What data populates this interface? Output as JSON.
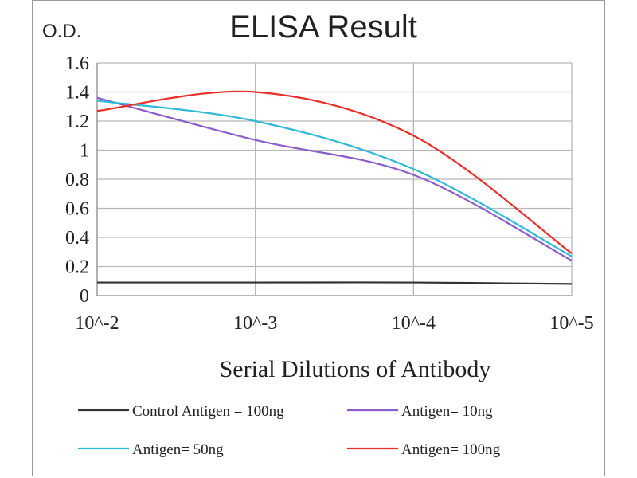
{
  "chart_data": {
    "type": "line",
    "title": "ELISA Result",
    "ylabel": "O.D.",
    "xlabel": "Serial  Dilutions  of Antibody",
    "x_ticks": [
      "10^-2",
      "10^-3",
      "10^-4",
      "10^-5"
    ],
    "y_ticks": [
      "0",
      "0.2",
      "0.4",
      "0.6",
      "0.8",
      "1",
      "1.2",
      "1.4",
      "1.6"
    ],
    "ylim": [
      0,
      1.6
    ],
    "grid": true,
    "legend_position": "bottom",
    "series": [
      {
        "name": "Control Antigen = 100ng",
        "color": "#333333",
        "x": [
          "10^-2",
          "10^-3",
          "10^-4",
          "10^-5"
        ],
        "y": [
          0.09,
          0.09,
          0.09,
          0.08
        ]
      },
      {
        "name": "Antigen= 10ng",
        "color": "#8c5cc8",
        "x": [
          "10^-2",
          "10^-3",
          "10^-4",
          "10^-5"
        ],
        "y": [
          1.36,
          1.07,
          0.83,
          0.24
        ]
      },
      {
        "name": "Antigen= 50ng",
        "color": "#2fb8d8",
        "x": [
          "10^-2",
          "10^-3",
          "10^-4",
          "10^-5"
        ],
        "y": [
          1.34,
          1.2,
          0.87,
          0.27
        ]
      },
      {
        "name": "Antigen= 100ng",
        "color": "#e8302a",
        "x": [
          "10^-2",
          "10^-3",
          "10^-4",
          "10^-5"
        ],
        "y": [
          1.27,
          1.4,
          1.1,
          0.29
        ]
      }
    ]
  }
}
